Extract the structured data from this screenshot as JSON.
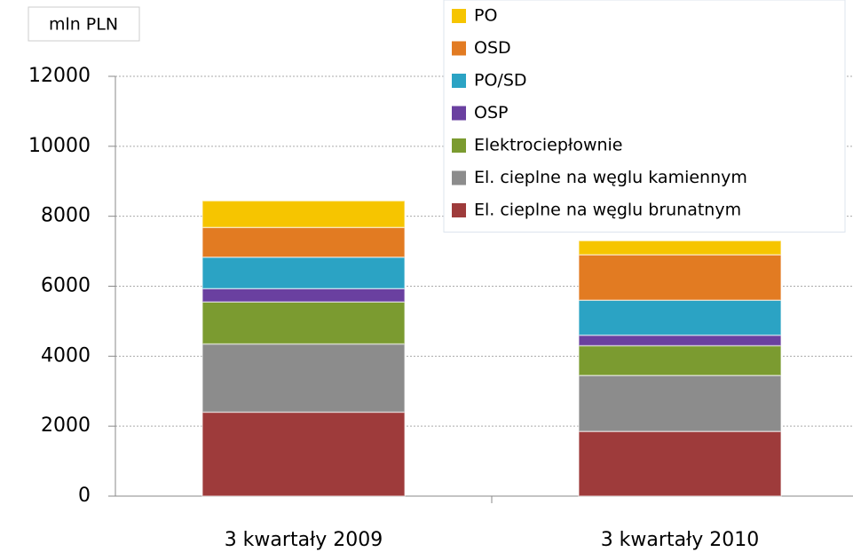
{
  "chart_data": {
    "type": "stacked_bar",
    "y_axis_label": "mln PLN",
    "categories": [
      "3 kwartały 2009",
      "3 kwartały 2010"
    ],
    "series": [
      {
        "name": "El. cieplne na węglu brunatnym",
        "color": "#9e3b3b",
        "values": [
          2400,
          1850
        ]
      },
      {
        "name": "El. cieplne na węglu kamiennym",
        "color": "#8c8c8c",
        "values": [
          1950,
          1600
        ]
      },
      {
        "name": "Elektrociepłownie",
        "color": "#7b9b30",
        "values": [
          1200,
          850
        ]
      },
      {
        "name": "OSP",
        "color": "#6a40a0",
        "values": [
          380,
          300
        ]
      },
      {
        "name": "PO/SD",
        "color": "#2ba3c4",
        "values": [
          900,
          1000
        ]
      },
      {
        "name": "OSD",
        "color": "#e27b22",
        "values": [
          850,
          1300
        ]
      },
      {
        "name": "PO",
        "color": "#f6c500",
        "values": [
          760,
          400
        ]
      }
    ],
    "ylim": [
      0,
      12000
    ],
    "yticks": [
      0,
      2000,
      4000,
      6000,
      8000,
      10000,
      12000
    ],
    "grid": true,
    "legend": "top-right"
  }
}
